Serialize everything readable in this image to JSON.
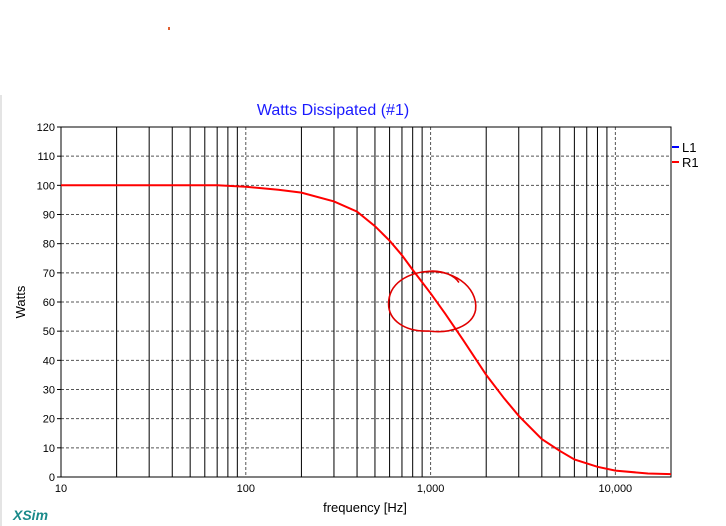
{
  "brand": "XSim",
  "chart_data": {
    "type": "line",
    "title": "Watts Dissipated (#1)",
    "xlabel": "frequency [Hz]",
    "ylabel": "Watts",
    "xscale": "log",
    "xlim": [
      10,
      20000
    ],
    "ylim": [
      0,
      120
    ],
    "grid": true,
    "legend_position": "right",
    "x_tick_labels": [
      "10",
      "100",
      "1,000",
      "10,000"
    ],
    "x_tick_values": [
      10,
      100,
      1000,
      10000
    ],
    "y_tick_values": [
      0,
      10,
      20,
      30,
      40,
      50,
      60,
      70,
      80,
      90,
      100,
      110,
      120
    ],
    "series": [
      {
        "name": "L1",
        "color": "#0000ff",
        "x": [],
        "y": []
      },
      {
        "name": "R1",
        "color": "#ff0000",
        "x": [
          10,
          20,
          50,
          70,
          100,
          150,
          200,
          300,
          400,
          500,
          600,
          700,
          800,
          1000,
          1200,
          1500,
          2000,
          2500,
          3000,
          4000,
          5000,
          6000,
          8000,
          10000,
          15000,
          20000
        ],
        "y": [
          100,
          100,
          100,
          100,
          99.5,
          98.5,
          97.5,
          94.5,
          91,
          86,
          81,
          76,
          71,
          63,
          56,
          47,
          35,
          27,
          21,
          13,
          9,
          6,
          3.5,
          2.2,
          1.2,
          1
        ]
      }
    ],
    "vertical_lines": [
      20,
      30,
      40,
      50,
      60,
      70,
      80,
      90,
      200,
      300,
      400,
      500,
      600,
      700,
      800,
      900,
      2000,
      3000,
      4000,
      5000,
      6000,
      7000,
      8000,
      9000
    ],
    "annotation": {
      "type": "hand-drawn-circle",
      "color": "#e00000",
      "center_x": 1000,
      "center_y": 60
    }
  }
}
